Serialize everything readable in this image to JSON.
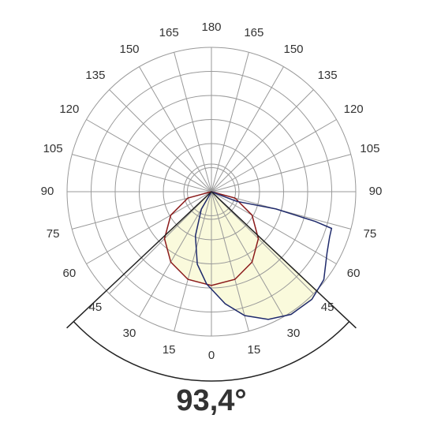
{
  "chart_data": {
    "type": "polar",
    "beam_angle": {
      "value": 93.4,
      "label": "93,4°"
    },
    "angle_ticks": [
      {
        "value": 0,
        "label": "0"
      },
      {
        "value": 15,
        "label": "15"
      },
      {
        "value": 30,
        "label": "30"
      },
      {
        "value": 45,
        "label": "45"
      },
      {
        "value": 60,
        "label": "60"
      },
      {
        "value": 75,
        "label": "75"
      },
      {
        "value": 90,
        "label": "90"
      },
      {
        "value": 105,
        "label": "105"
      },
      {
        "value": 120,
        "label": "120"
      },
      {
        "value": 135,
        "label": "135"
      },
      {
        "value": 150,
        "label": "150"
      },
      {
        "value": 165,
        "label": "165"
      },
      {
        "value": 180,
        "label": "180"
      },
      {
        "value": -15,
        "label": "15"
      },
      {
        "value": -30,
        "label": "30"
      },
      {
        "value": -45,
        "label": "45"
      },
      {
        "value": -60,
        "label": "60"
      },
      {
        "value": -75,
        "label": "75"
      },
      {
        "value": -90,
        "label": "90"
      },
      {
        "value": -105,
        "label": "105"
      },
      {
        "value": -120,
        "label": "120"
      },
      {
        "value": -135,
        "label": "135"
      },
      {
        "value": -150,
        "label": "150"
      },
      {
        "value": -165,
        "label": "165"
      }
    ],
    "rlim": [
      0,
      6
    ],
    "rticks": [
      1,
      2,
      3,
      4,
      5,
      6
    ],
    "fill_color": "#fafadc",
    "series": [
      {
        "color": "#8b1a1a",
        "angles": [
          -90,
          -75,
          -60,
          -45,
          -30,
          -15,
          0,
          15,
          30,
          45,
          60,
          75,
          90
        ],
        "values": [
          0,
          1.01,
          1.95,
          2.76,
          3.38,
          3.77,
          3.9,
          3.77,
          3.38,
          2.76,
          1.95,
          1.01,
          0
        ]
      },
      {
        "color": "#1f2a6b",
        "angles": [
          -40,
          -30,
          -20,
          -11,
          -3,
          7,
          15,
          24,
          33,
          43,
          52,
          62,
          69,
          73,
          74,
          75,
          69,
          70
        ],
        "values": [
          0,
          0.84,
          1.95,
          3.07,
          3.84,
          4.69,
          5.33,
          5.81,
          6.08,
          6.12,
          5.93,
          5.44,
          5.26,
          5.22,
          4.49,
          2.78,
          1.12,
          0
        ]
      }
    ]
  }
}
